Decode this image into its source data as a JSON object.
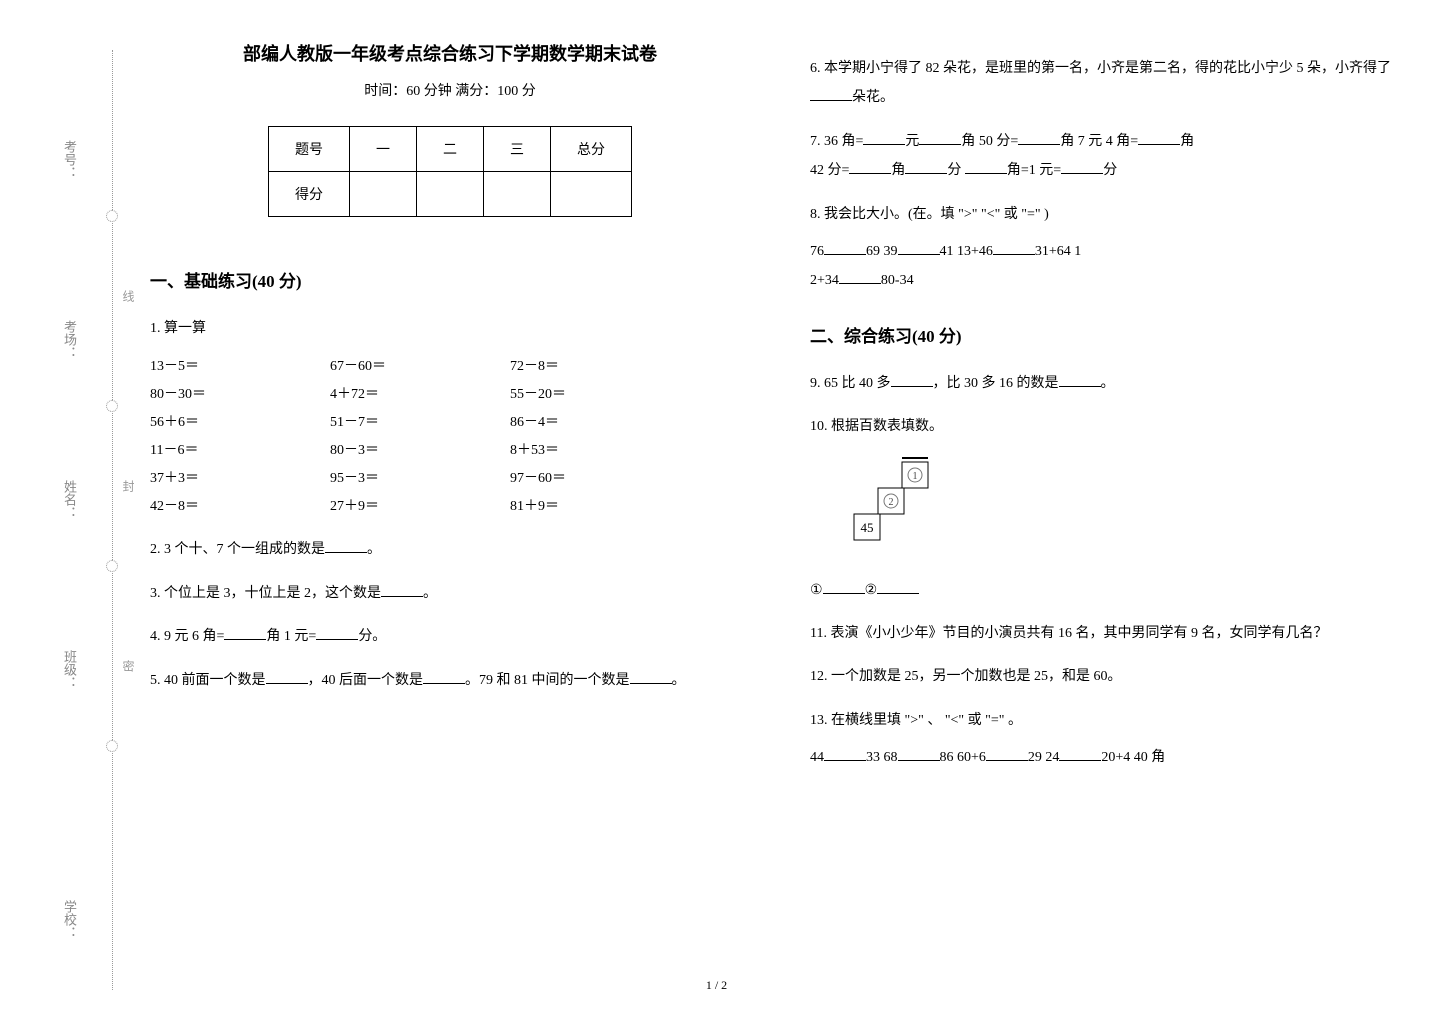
{
  "binding": {
    "labels": [
      "考号：",
      "考场：",
      "姓名：",
      "班级：",
      "学校："
    ],
    "along": [
      "线",
      "封",
      "密"
    ]
  },
  "header": {
    "title": "部编人教版一年级考点综合练习下学期数学期末试卷",
    "subtitle": "时间：60 分钟  满分：100 分"
  },
  "score_table": {
    "head": [
      "题号",
      "一",
      "二",
      "三",
      "总分"
    ],
    "row2_label": "得分"
  },
  "section1": {
    "heading": "一、基础练习(40 分)",
    "q1_label": "1. 算一算",
    "calc": [
      [
        "13－5＝",
        "67－60＝",
        "72－8＝"
      ],
      [
        "80－30＝",
        "4＋72＝",
        "55－20＝"
      ],
      [
        "56＋6＝",
        "51－7＝",
        "86－4＝"
      ],
      [
        "11－6＝",
        "80－3＝",
        "8＋53＝"
      ],
      [
        "37＋3＝",
        "95－3＝",
        "97－60＝"
      ],
      [
        "42－8＝",
        "27＋9＝",
        "81＋9＝"
      ]
    ],
    "q2": "2. 3 个十、7 个一组成的数是______。",
    "q3": "3. 个位上是 3，十位上是 2，这个数是______。",
    "q4": "4. 9 元 6 角=______角  1 元=______分。",
    "q5": "5. 40 前面一个数是______，40 后面一个数是______。79 和 81 中间的一个数是______。",
    "q6": "6. 本学期小宁得了 82 朵花，是班里的第一名，小齐是第二名，得的花比小宁少 5 朵，小齐得了______朵花。",
    "q7_a": "7. 36 角=______元______角        50 分=______角    7 元 4 角=______角",
    "q7_b": "42 分=______角______分           ______角=1 元=______分",
    "q8_title": "8. 我会比大小。(在。填 \">\" \"<\" 或 \"=\" )",
    "q8_line1": "76______69        39______41      13+46______31+64        1",
    "q8_line2": "2+34______80-34"
  },
  "section2": {
    "heading": "二、综合练习(40 分)",
    "q9": "9. 65 比 40 多______，比 30 多 16 的数是______。",
    "q10": "10. 根据百数表填数。",
    "chart_value": "45",
    "chart_blanks": "①______②______",
    "q11": "11. 表演《小小少年》节目的小演员共有 16 名，其中男同学有 9 名，女同学有几名？",
    "q12": "12. 一个加数是 25，另一个加数也是 25，和是 60。",
    "q13_title": "13. 在横线里填 \">\" 、 \"<\" 或 \"=\" 。",
    "q13_line": "44______33  68______86  60+6______29  24______20+4  40 角"
  },
  "pagenum": "1 / 2"
}
